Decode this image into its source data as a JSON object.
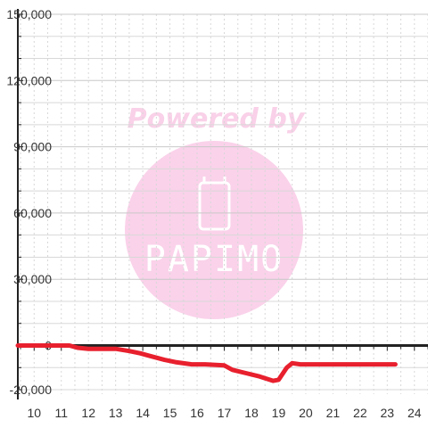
{
  "chart_data": {
    "type": "line",
    "title": "",
    "xlabel": "",
    "ylabel": "",
    "xlim": [
      9.4,
      24.5
    ],
    "ylim": [
      -22000,
      150000
    ],
    "x_ticks": [
      10,
      11,
      12,
      13,
      14,
      15,
      16,
      17,
      18,
      19,
      20,
      21,
      22,
      23,
      24
    ],
    "y_ticks": [
      -20000,
      0,
      30000,
      60000,
      90000,
      120000,
      150000
    ],
    "x_tick_labels": [
      "10",
      "11",
      "12",
      "13",
      "14",
      "15",
      "16",
      "17",
      "18",
      "19",
      "20",
      "21",
      "22",
      "23",
      "24"
    ],
    "y_tick_labels": [
      "-20,000",
      "0",
      "30,000",
      "60,000",
      "90,000",
      "120,000",
      "150,000"
    ],
    "grid": true,
    "series": [
      {
        "color": "#e8202e",
        "x": [
          9.4,
          11.3,
          11.6,
          12.0,
          13.0,
          13.5,
          13.9,
          14.2,
          14.8,
          15.2,
          15.8,
          16.3,
          17.0,
          17.3,
          17.8,
          18.3,
          18.8,
          19.0,
          19.3,
          19.5,
          19.8,
          20.5,
          21.5,
          22.5,
          23.3
        ],
        "y": [
          0,
          0,
          -1000,
          -1500,
          -1500,
          -2500,
          -3500,
          -4500,
          -6500,
          -7500,
          -8500,
          -8500,
          -9000,
          -11000,
          -12500,
          -14000,
          -16000,
          -15500,
          -10000,
          -8000,
          -8500,
          -8500,
          -8500,
          -8500,
          -8500
        ]
      }
    ],
    "line_width": 5
  },
  "watermark": {
    "text": "Powered by",
    "brand": "PAPIMO",
    "circle_color": "#fad2ea",
    "text_color": "#f9d1e8"
  },
  "colors": {
    "axis": "#222222",
    "grid_major": "#c8c8c8",
    "grid_minor": "#d8d8d8",
    "line": "#e8202e"
  }
}
